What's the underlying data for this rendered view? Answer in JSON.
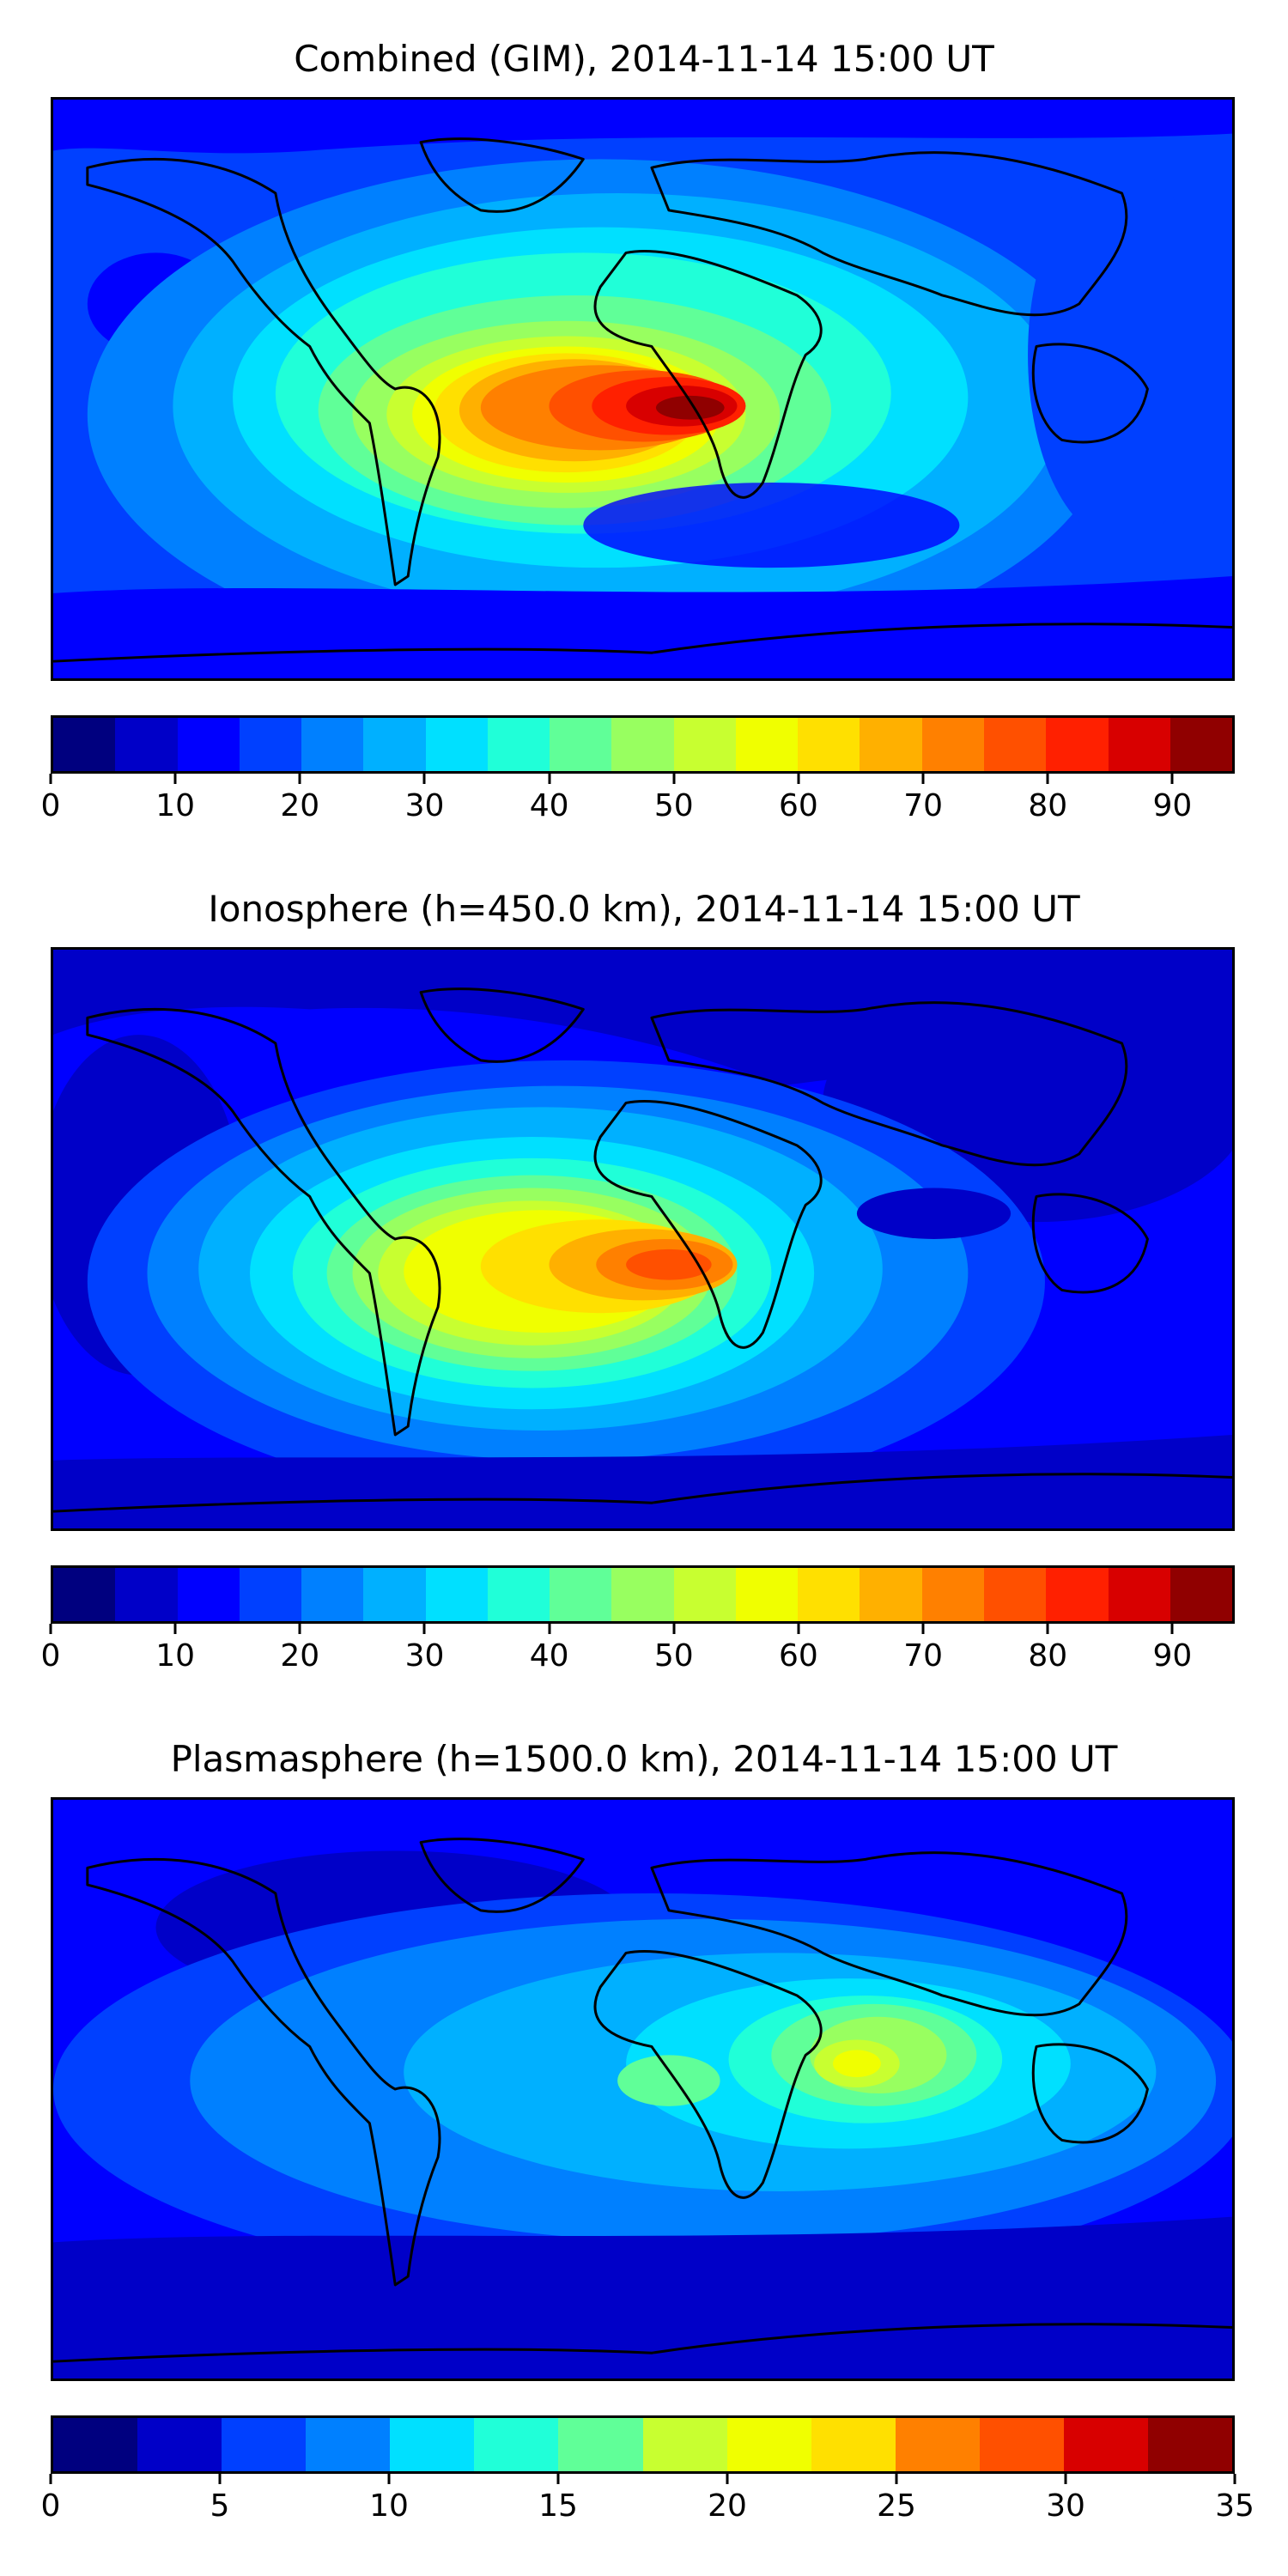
{
  "colors": [
    "#00007f",
    "#0000c8",
    "#0000ff",
    "#0040ff",
    "#0080ff",
    "#00b0ff",
    "#00e0ff",
    "#20ffd8",
    "#60ff98",
    "#98ff60",
    "#c8ff30",
    "#f0ff00",
    "#ffe000",
    "#ffb000",
    "#ff8000",
    "#ff5000",
    "#ff2000",
    "#d80000",
    "#900000"
  ],
  "panels": [
    {
      "title": "Combined (GIM), 2014-11-14 15:00 UT",
      "colorbar": {
        "min": 0,
        "max": 95,
        "step": 5,
        "ticks": [
          0,
          10,
          20,
          30,
          40,
          50,
          60,
          70,
          80,
          90
        ]
      },
      "field": {
        "max_value": 92,
        "max_location": "South Atlantic / west Africa (~10°S, 10°E)"
      }
    },
    {
      "title": "Ionosphere  (h=450.0 km), 2014-11-14 15:00 UT",
      "colorbar": {
        "min": 0,
        "max": 95,
        "step": 5,
        "ticks": [
          0,
          10,
          20,
          30,
          40,
          50,
          60,
          70,
          80,
          90
        ]
      },
      "field": {
        "max_value": 80,
        "max_location": "South Atlantic (~15°S, 0°E)"
      }
    },
    {
      "title": "Plasmasphere (h=1500.0 km), 2014-11-14 15:00 UT",
      "colorbar": {
        "min": 0,
        "max": 35,
        "step": 2.5,
        "ticks": [
          0,
          5,
          10,
          15,
          20,
          25,
          30,
          35
        ]
      },
      "field": {
        "max_value": 22,
        "max_location": "Arabian Sea / east Africa (~10°N, 50°E)"
      }
    }
  ]
}
